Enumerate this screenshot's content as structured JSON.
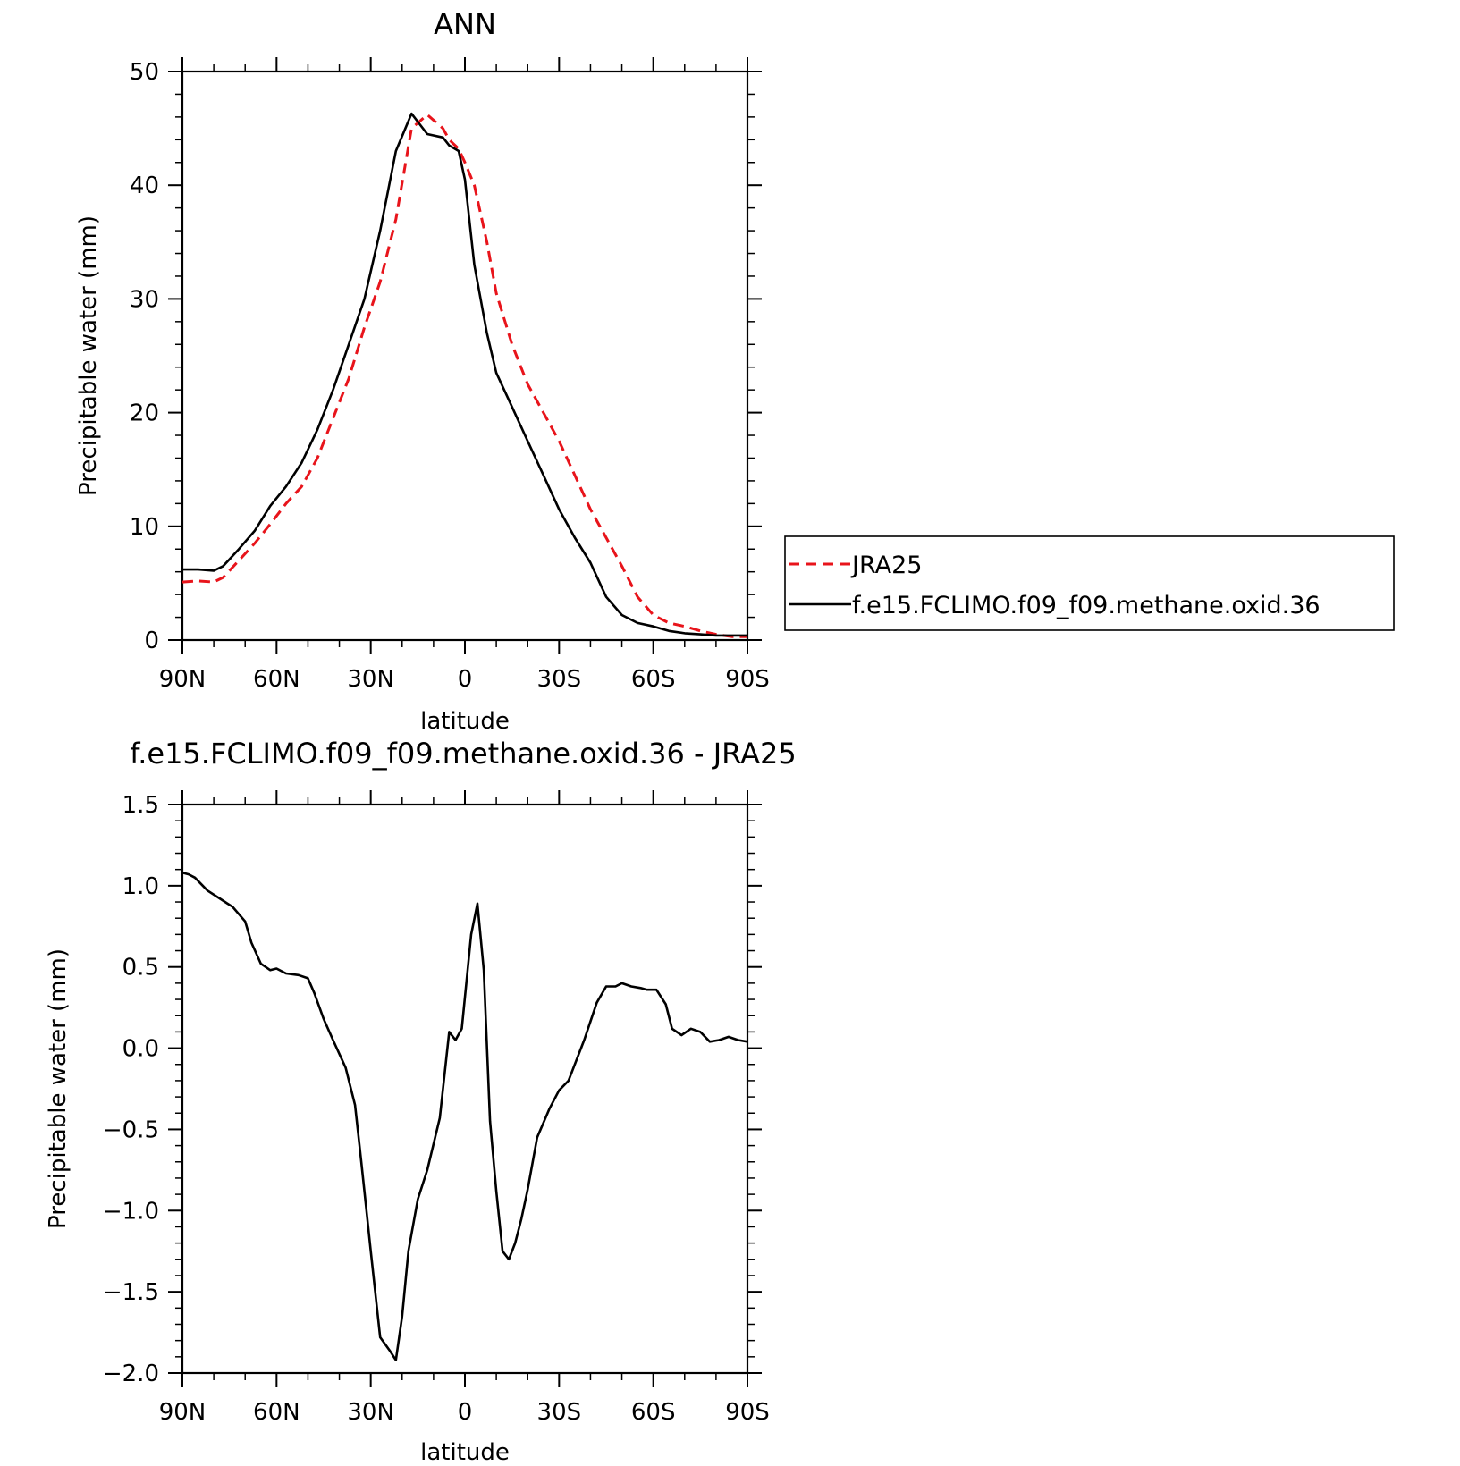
{
  "colors": {
    "obs": "#e8141b",
    "model": "#000000",
    "axis": "#000000"
  },
  "chart_data": [
    {
      "type": "line",
      "title": "ANN",
      "xlabel": "latitude",
      "ylabel": "Precipitable water (mm)",
      "xlim": [
        90,
        -90
      ],
      "ylim": [
        0,
        50
      ],
      "xticks": [
        90,
        60,
        30,
        0,
        -30,
        -60,
        -90
      ],
      "xtick_labels": [
        "90N",
        "60N",
        "30N",
        "0",
        "30S",
        "60S",
        "90S"
      ],
      "yticks": [
        0,
        10,
        20,
        30,
        40,
        50
      ],
      "ytick_labels": [
        "0",
        "10",
        "20",
        "30",
        "40",
        "50"
      ],
      "legend": {
        "position": "right",
        "entries": [
          "JRA25",
          "f.e15.FCLIMO.f09_f09.methane.oxid.36"
        ]
      },
      "series": [
        {
          "name": "JRA25",
          "style": "dashed",
          "color": "#e8141b",
          "x": [
            90,
            85,
            80,
            77,
            72,
            67,
            62,
            57,
            52,
            47,
            42,
            37,
            32,
            27,
            22,
            17,
            12,
            7,
            5,
            2,
            0,
            -3,
            -7,
            -10,
            -15,
            -20,
            -25,
            -30,
            -35,
            -40,
            -45,
            -50,
            -55,
            -60,
            -65,
            -70,
            -75,
            -80,
            -85,
            -88,
            -90
          ],
          "values": [
            5.1,
            5.2,
            5.1,
            5.5,
            7.0,
            8.5,
            10.2,
            12.0,
            13.5,
            16.0,
            19.5,
            23.0,
            27.5,
            31.5,
            37.0,
            45.0,
            46.2,
            45.0,
            44.0,
            43.2,
            42.0,
            40.0,
            35.0,
            30.5,
            26.0,
            22.5,
            20.0,
            17.5,
            14.5,
            11.5,
            9.0,
            6.5,
            3.8,
            2.2,
            1.5,
            1.2,
            0.8,
            0.5,
            0.3,
            0.3,
            0.3
          ]
        },
        {
          "name": "f.e15.FCLIMO.f09_f09.methane.oxid.36",
          "style": "solid",
          "color": "#000000",
          "x": [
            90,
            85,
            80,
            77,
            72,
            67,
            62,
            57,
            52,
            47,
            42,
            37,
            32,
            27,
            22,
            17,
            12,
            7,
            5,
            2,
            0,
            -3,
            -7,
            -10,
            -15,
            -20,
            -25,
            -30,
            -35,
            -40,
            -45,
            -50,
            -55,
            -60,
            -65,
            -70,
            -75,
            -80,
            -85,
            -88,
            -90
          ],
          "values": [
            6.2,
            6.2,
            6.1,
            6.5,
            8.0,
            9.6,
            11.8,
            13.5,
            15.6,
            18.5,
            22.0,
            26.0,
            30.0,
            36.0,
            43.0,
            46.3,
            44.5,
            44.2,
            43.5,
            43.0,
            40.5,
            33.0,
            27.0,
            23.5,
            20.5,
            17.5,
            14.5,
            11.5,
            9.0,
            6.8,
            3.8,
            2.2,
            1.5,
            1.2,
            0.8,
            0.6,
            0.5,
            0.4,
            0.4,
            0.4,
            0.4
          ]
        }
      ]
    },
    {
      "type": "line",
      "title": "f.e15.FCLIMO.f09_f09.methane.oxid.36 - JRA25",
      "xlabel": "latitude",
      "ylabel": "Precipitable water (mm)",
      "xlim": [
        90,
        -90
      ],
      "ylim": [
        -2.0,
        1.5
      ],
      "xticks": [
        90,
        60,
        30,
        0,
        -30,
        -60,
        -90
      ],
      "xtick_labels": [
        "90N",
        "60N",
        "30N",
        "0",
        "30S",
        "60S",
        "90S"
      ],
      "yticks": [
        -2.0,
        -1.5,
        -1.0,
        -0.5,
        0.0,
        0.5,
        1.0,
        1.5
      ],
      "ytick_labels": [
        "−2.0",
        "−1.5",
        "−1.0",
        "−0.5",
        "0.0",
        "0.5",
        "1.0",
        "1.5"
      ],
      "series": [
        {
          "style": "solid",
          "color": "#000000",
          "x": [
            90,
            88,
            86,
            82,
            78,
            74,
            70,
            68,
            65,
            62,
            60,
            57,
            53,
            50,
            48,
            45,
            42,
            38,
            35,
            33,
            30,
            27,
            24,
            22,
            20,
            18,
            15,
            12,
            8,
            5,
            3,
            1,
            -2,
            -4,
            -6,
            -8,
            -10,
            -12,
            -14,
            -16,
            -18,
            -20,
            -23,
            -27,
            -30,
            -33,
            -35,
            -38,
            -42,
            -45,
            -48,
            -50,
            -53,
            -56,
            -58,
            -61,
            -64,
            -66,
            -69,
            -72,
            -75,
            -78,
            -81,
            -84,
            -87,
            -90
          ],
          "values": [
            1.08,
            1.07,
            1.05,
            0.97,
            0.92,
            0.87,
            0.78,
            0.65,
            0.52,
            0.48,
            0.49,
            0.46,
            0.45,
            0.43,
            0.34,
            0.18,
            0.05,
            -0.12,
            -0.35,
            -0.7,
            -1.25,
            -1.78,
            -1.86,
            -1.92,
            -1.65,
            -1.25,
            -0.93,
            -0.75,
            -0.43,
            0.1,
            0.05,
            0.12,
            0.7,
            0.89,
            0.48,
            -0.45,
            -0.88,
            -1.25,
            -1.3,
            -1.2,
            -1.05,
            -0.87,
            -0.55,
            -0.37,
            -0.26,
            -0.2,
            -0.1,
            0.05,
            0.28,
            0.38,
            0.38,
            0.4,
            0.38,
            0.37,
            0.36,
            0.36,
            0.27,
            0.12,
            0.08,
            0.12,
            0.1,
            0.04,
            0.05,
            0.07,
            0.05,
            0.04
          ]
        }
      ]
    }
  ]
}
